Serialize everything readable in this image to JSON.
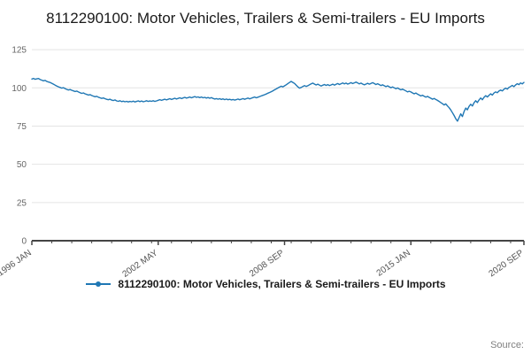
{
  "page": {
    "source_label": "Source:"
  },
  "chart_data": {
    "type": "line",
    "title": "8112290100: Motor Vehicles, Trailers & Semi-trailers - EU Imports",
    "xlabel": "",
    "ylabel": "",
    "ylim": [
      0,
      132
    ],
    "y_ticks": [
      0,
      25,
      50,
      75,
      100,
      125
    ],
    "grid": true,
    "legend_position": "bottom",
    "x_start": "1996 JAN",
    "x_end": "2020 SEP",
    "frequency": "monthly",
    "x_tick_labels": [
      "1996 JAN",
      "2002 MAY",
      "2008 SEP",
      "2015 JAN",
      "2020 SEP"
    ],
    "x_tick_positions": [
      0,
      76,
      152,
      228,
      296
    ],
    "series": [
      {
        "name": "8112290100: Motor Vehicles, Trailers & Semi-trailers - EU Imports",
        "color": "#1f77b4",
        "values": [
          105.8,
          106.2,
          105.6,
          105.9,
          106.1,
          105.4,
          105.0,
          104.6,
          104.9,
          104.2,
          103.8,
          103.5,
          103.0,
          102.4,
          101.8,
          101.2,
          100.7,
          100.3,
          99.8,
          100.1,
          99.5,
          99.0,
          98.6,
          98.9,
          98.4,
          98.0,
          97.6,
          97.9,
          97.3,
          96.8,
          96.4,
          96.7,
          96.1,
          95.7,
          95.3,
          95.6,
          95.0,
          94.6,
          94.2,
          94.5,
          93.9,
          93.5,
          93.1,
          93.4,
          92.9,
          92.5,
          92.2,
          92.6,
          92.0,
          91.7,
          92.1,
          91.5,
          91.2,
          91.6,
          91.0,
          91.3,
          90.9,
          91.2,
          90.8,
          91.1,
          90.9,
          91.3,
          90.8,
          91.1,
          91.5,
          91.0,
          91.4,
          90.9,
          91.2,
          91.6,
          91.1,
          91.4,
          91.2,
          91.6,
          91.1,
          91.5,
          91.9,
          92.3,
          91.8,
          92.2,
          92.6,
          92.1,
          92.5,
          92.9,
          92.4,
          92.8,
          93.2,
          92.7,
          93.1,
          93.5,
          93.0,
          93.4,
          93.8,
          93.3,
          93.6,
          94.0,
          93.5,
          93.9,
          94.3,
          93.8,
          94.1,
          93.6,
          94.0,
          93.5,
          93.8,
          93.3,
          93.7,
          93.2,
          93.6,
          93.1,
          92.7,
          93.0,
          92.6,
          92.9,
          92.4,
          92.8,
          92.3,
          92.7,
          92.2,
          92.5,
          92.1,
          92.4,
          92.0,
          92.3,
          92.7,
          92.2,
          92.6,
          93.0,
          92.5,
          92.9,
          93.3,
          92.8,
          93.2,
          93.6,
          94.0,
          93.5,
          93.9,
          94.3,
          94.7,
          95.1,
          95.5,
          96.0,
          96.5,
          97.0,
          97.5,
          98.1,
          98.7,
          99.3,
          99.9,
          100.5,
          101.1,
          100.6,
          101.3,
          102.0,
          102.8,
          103.5,
          104.2,
          103.6,
          102.9,
          101.8,
          100.7,
          99.8,
          100.3,
          100.9,
          101.5,
          100.9,
          101.4,
          102.0,
          102.6,
          103.1,
          102.5,
          101.9,
          102.4,
          101.8,
          101.2,
          101.7,
          102.2,
          101.6,
          102.1,
          101.5,
          101.9,
          102.4,
          101.8,
          102.3,
          102.8,
          102.2,
          102.7,
          103.2,
          102.6,
          103.1,
          102.5,
          102.9,
          103.4,
          102.8,
          103.3,
          103.8,
          103.2,
          102.6,
          103.1,
          102.5,
          102.0,
          102.5,
          103.0,
          102.4,
          102.9,
          103.4,
          102.8,
          102.2,
          102.7,
          102.1,
          101.5,
          102.0,
          101.4,
          100.8,
          101.3,
          100.7,
          100.1,
          100.6,
          100.0,
          99.4,
          99.9,
          99.3,
          98.7,
          99.2,
          98.6,
          98.0,
          97.4,
          97.8,
          97.3,
          96.7,
          96.1,
          96.6,
          95.9,
          95.3,
          94.7,
          95.2,
          94.5,
          93.9,
          94.4,
          93.8,
          93.2,
          92.6,
          93.1,
          92.4,
          91.8,
          91.1,
          90.4,
          89.6,
          88.8,
          89.5,
          88.2,
          87.0,
          85.5,
          83.8,
          81.9,
          79.8,
          78.2,
          80.5,
          83.0,
          81.2,
          84.5,
          86.8,
          85.6,
          87.9,
          89.3,
          88.1,
          90.2,
          91.6,
          90.4,
          92.1,
          93.4,
          92.2,
          93.8,
          94.9,
          94.0,
          95.2,
          96.1,
          95.3,
          96.6,
          97.4,
          96.8,
          97.9,
          98.6,
          98.0,
          99.1,
          99.8,
          99.2,
          100.3,
          100.9,
          101.6,
          100.8,
          101.9,
          102.7,
          102.1,
          103.2,
          102.6,
          103.6
        ]
      }
    ]
  }
}
